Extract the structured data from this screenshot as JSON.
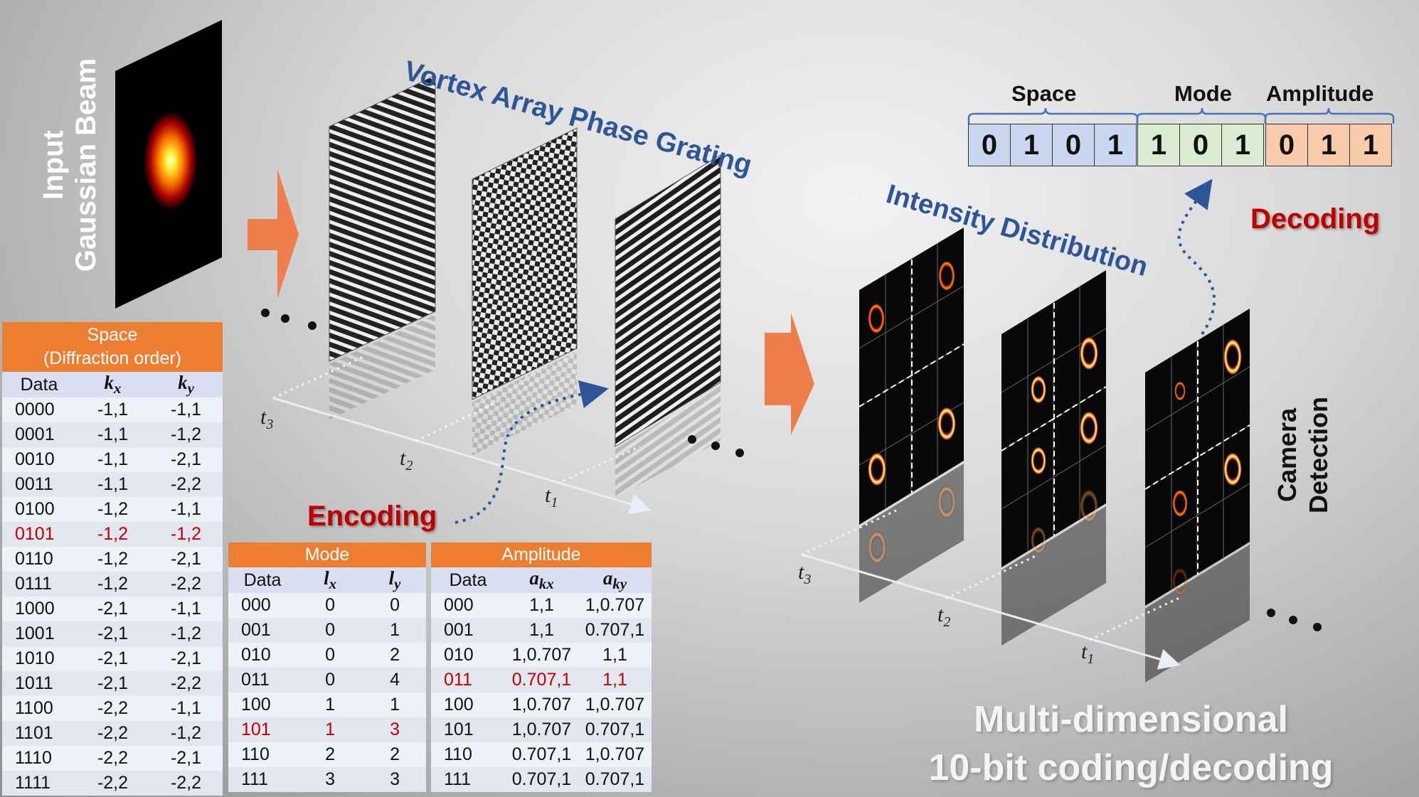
{
  "input_label_line1": "Input",
  "input_label_line2": "Gaussian Beam",
  "grating_title": "Vortex Array Phase Grating",
  "intensity_title": "Intensity Distribution",
  "encoding_label": "Encoding",
  "decoding_label": "Decoding",
  "camera_line1": "Camera",
  "camera_line2": "Detection",
  "footer_line1": "Multi-dimensional",
  "footer_line2": "10-bit coding/decoding",
  "time_labels": {
    "t3": "t",
    "t3_sub": "3",
    "t2": "t",
    "t2_sub": "2",
    "t1": "t",
    "t1_sub": "1"
  },
  "colors": {
    "accent_orange": "#ed7d31",
    "title_blue": "#2e5597",
    "highlight_red": "#c00000",
    "space_blue": "#c9d7f0",
    "mode_green": "#d9ecd2",
    "amp_orange": "#f8cbad"
  },
  "bit_groups": {
    "space_label": "Space",
    "mode_label": "Mode",
    "amplitude_label": "Amplitude",
    "space_bits": [
      "0",
      "1",
      "0",
      "1"
    ],
    "mode_bits": [
      "1",
      "0",
      "1"
    ],
    "amplitude_bits": [
      "0",
      "1",
      "1"
    ]
  },
  "space_table": {
    "title_line1": "Space",
    "title_line2": "(Diffraction order)",
    "col_data": "Data",
    "col_kx": "k",
    "col_kx_sub": "x",
    "col_ky": "k",
    "col_ky_sub": "y",
    "rows": [
      [
        "0000",
        "-1,1",
        "-1,1"
      ],
      [
        "0001",
        "-1,1",
        "-1,2"
      ],
      [
        "0010",
        "-1,1",
        "-2,1"
      ],
      [
        "0011",
        "-1,1",
        "-2,2"
      ],
      [
        "0100",
        "-1,2",
        "-1,1"
      ],
      [
        "0101",
        "-1,2",
        "-1,2"
      ],
      [
        "0110",
        "-1,2",
        "-2,1"
      ],
      [
        "0111",
        "-1,2",
        "-2,2"
      ],
      [
        "1000",
        "-2,1",
        "-1,1"
      ],
      [
        "1001",
        "-2,1",
        "-1,2"
      ],
      [
        "1010",
        "-2,1",
        "-2,1"
      ],
      [
        "1011",
        "-2,1",
        "-2,2"
      ],
      [
        "1100",
        "-2,2",
        "-1,1"
      ],
      [
        "1101",
        "-2,2",
        "-1,2"
      ],
      [
        "1110",
        "-2,2",
        "-2,1"
      ],
      [
        "1111",
        "-2,2",
        "-2,2"
      ]
    ],
    "highlight_row": 5
  },
  "mode_table": {
    "title": "Mode",
    "col_data": "Data",
    "col_lx": "l",
    "col_lx_sub": "x",
    "col_ly": "l",
    "col_ly_sub": "y",
    "rows": [
      [
        "000",
        "0",
        "0"
      ],
      [
        "001",
        "0",
        "1"
      ],
      [
        "010",
        "0",
        "2"
      ],
      [
        "011",
        "0",
        "4"
      ],
      [
        "100",
        "1",
        "1"
      ],
      [
        "101",
        "1",
        "3"
      ],
      [
        "110",
        "2",
        "2"
      ],
      [
        "111",
        "3",
        "3"
      ]
    ],
    "highlight_row": 5
  },
  "amplitude_table": {
    "title": "Amplitude",
    "col_data": "Data",
    "col_akx": "a",
    "col_akx_sub": "kx",
    "col_aky": "a",
    "col_aky_sub": "ky",
    "rows": [
      [
        "000",
        "1,1",
        "1,0.707"
      ],
      [
        "001",
        "1,1",
        "0.707,1"
      ],
      [
        "010",
        "1,0.707",
        "1,1"
      ],
      [
        "011",
        "0.707,1",
        "1,1"
      ],
      [
        "100",
        "1,0.707",
        "1,0.707"
      ],
      [
        "101",
        "1,0.707",
        "0.707,1"
      ],
      [
        "110",
        "0.707,1",
        "1,0.707"
      ],
      [
        "111",
        "0.707,1",
        "0.707,1"
      ]
    ],
    "highlight_row": 3
  }
}
